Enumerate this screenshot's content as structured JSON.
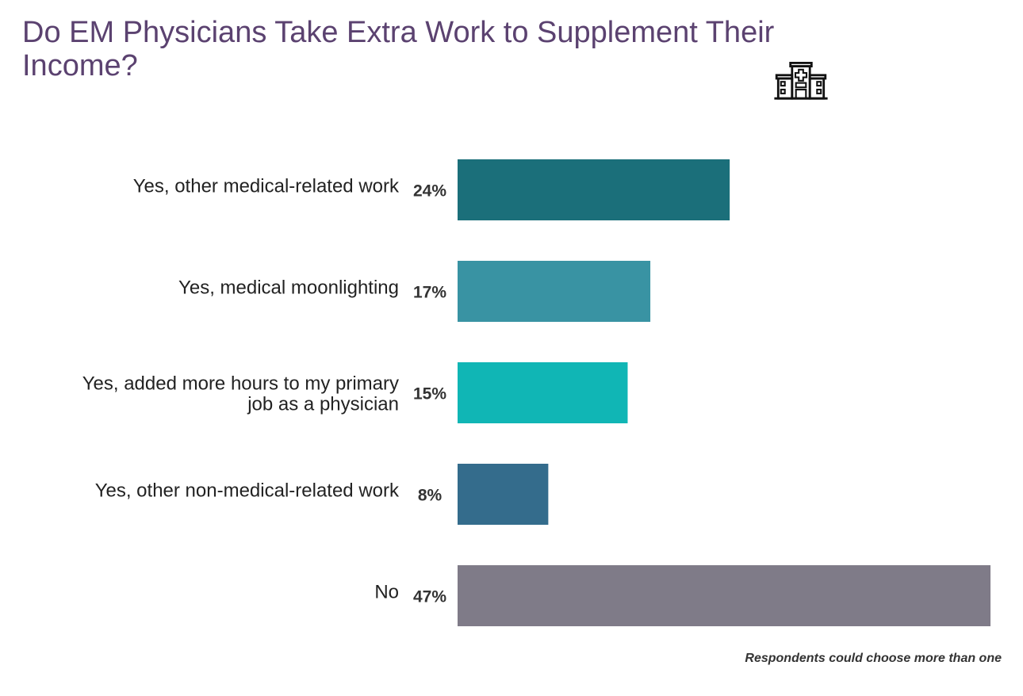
{
  "chart_data": {
    "type": "bar",
    "orientation": "horizontal",
    "title": "Do EM Physicians Take Extra Work to Supplement Their Income?",
    "categories": [
      "Yes, other medical-related work",
      "Yes, medical moonlighting",
      "Yes, added more hours to my primary job as a physician",
      "Yes, other non-medical-related work",
      "No"
    ],
    "values": [
      24,
      17,
      15,
      8,
      47
    ],
    "data_labels": [
      "24%",
      "17%",
      "15%",
      "8%",
      "47%"
    ],
    "colors": [
      "#1b6f7a",
      "#3993a3",
      "#10b6b5",
      "#346c8c",
      "#7f7b88"
    ],
    "xlim": [
      0,
      47
    ],
    "grid": false,
    "legend": "none",
    "note": "Respondents could choose more than one"
  },
  "icon": "hospital-icon"
}
